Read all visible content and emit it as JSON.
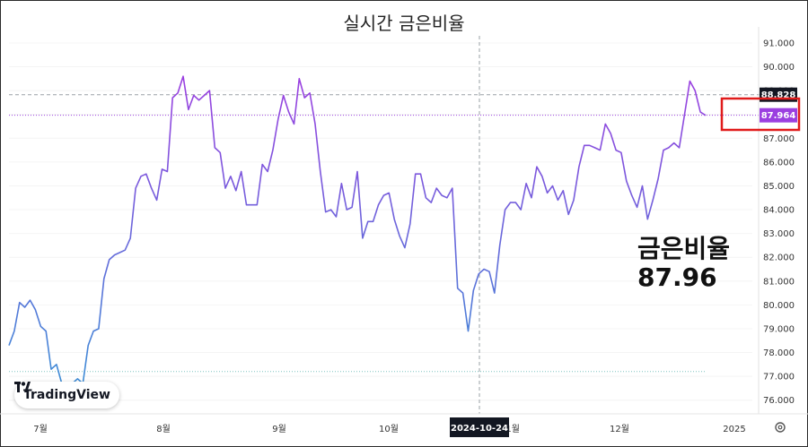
{
  "title": "실시간 금은비율",
  "overlay": {
    "label": "금은비율",
    "value": "87.96"
  },
  "logo": {
    "text": "TradingView"
  },
  "price_tags": {
    "last": "87.964",
    "high_line": "88.828"
  },
  "x_axis": {
    "cursor_label": "2024-10-24"
  },
  "colors": {
    "line_start": "#3a8fd6",
    "line_end": "#9b3fe0",
    "last_tag": "#9b3fe0",
    "dark_tag": "#131722",
    "highlight_box": "#e01b1b"
  },
  "chart_data": {
    "type": "line",
    "title": "실시간 금은비율",
    "ylim": [
      75.5,
      91.3
    ],
    "yticks": [
      "91.000",
      "90.000",
      "89.000",
      "88.000",
      "87.000",
      "86.000",
      "85.000",
      "84.000",
      "83.000",
      "82.000",
      "81.000",
      "80.000",
      "79.000",
      "78.000",
      "77.000",
      "76.000"
    ],
    "xticks": [
      "7월",
      "8월",
      "9월",
      "10월",
      "11월",
      "12월",
      "2025"
    ],
    "y": [
      78.3,
      78.9,
      80.1,
      79.9,
      80.2,
      79.8,
      79.1,
      78.9,
      77.3,
      77.5,
      76.7,
      76.3,
      76.7,
      76.9,
      76.7,
      78.3,
      78.9,
      79.0,
      81.1,
      81.9,
      82.1,
      82.2,
      82.3,
      82.8,
      84.9,
      85.4,
      85.5,
      84.9,
      84.4,
      85.7,
      85.6,
      88.7,
      88.9,
      89.6,
      88.2,
      88.8,
      88.6,
      88.8,
      89.0,
      86.6,
      86.4,
      84.9,
      85.4,
      84.8,
      85.6,
      84.2,
      84.2,
      84.2,
      85.9,
      85.6,
      86.5,
      87.8,
      88.8,
      88.1,
      87.6,
      89.5,
      88.7,
      88.9,
      87.6,
      85.6,
      83.9,
      84.0,
      83.7,
      85.1,
      84.0,
      84.1,
      85.6,
      82.8,
      83.5,
      83.5,
      84.2,
      84.6,
      84.7,
      83.6,
      82.9,
      82.4,
      83.4,
      85.5,
      85.5,
      84.5,
      84.3,
      84.9,
      84.6,
      84.5,
      84.9,
      80.7,
      80.5,
      78.9,
      80.6,
      81.3,
      81.5,
      81.4,
      80.5,
      82.5,
      84.0,
      84.3,
      84.3,
      84.0,
      85.1,
      84.5,
      85.8,
      85.4,
      84.7,
      85.0,
      84.4,
      84.8,
      83.8,
      84.4,
      85.8,
      86.7,
      86.7,
      86.6,
      86.5,
      87.6,
      87.2,
      86.5,
      86.4,
      85.2,
      84.6,
      84.1,
      85.0,
      83.6,
      84.4,
      85.3,
      86.5,
      86.6,
      86.8,
      86.6,
      88.0,
      89.4,
      89.0,
      88.1,
      87.96
    ],
    "reference_lines": [
      88.828,
      77.2
    ],
    "last_value": 87.964,
    "cursor_x_label": "2024-10-24"
  }
}
